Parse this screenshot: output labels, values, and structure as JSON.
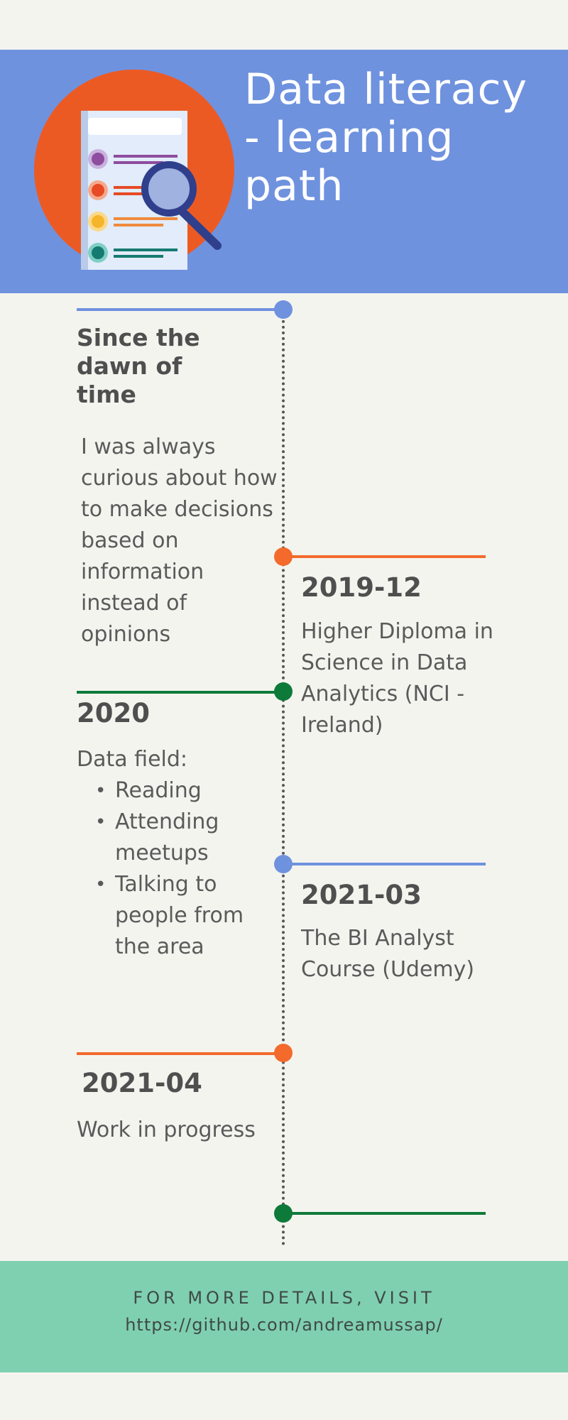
{
  "header": {
    "title": "Data literacy - learning path",
    "icon": "document-magnifier-icon",
    "colors": {
      "background": "#6f92de",
      "icon_circle": "#ec5a24"
    }
  },
  "timeline": [
    {
      "heading": "Since the dawn of time",
      "text": "I was always curious about how to make decisions based on information instead of opinions",
      "color": "#6f92de"
    },
    {
      "heading": "2019-12",
      "text": "Higher Diploma in Science in Data Analytics (NCI - Ireland)",
      "color": "#f36a2c"
    },
    {
      "heading": "2020",
      "intro": "Data field:",
      "bullets": [
        "Reading",
        "Attending meetups",
        "Talking to people from the area"
      ],
      "color": "#0e7a3a"
    },
    {
      "heading": "2021-03",
      "text": "The BI Analyst Course (Udemy)",
      "color": "#6f92de"
    },
    {
      "heading": "2021-04",
      "text": "Work in progress",
      "color": "#f36a2c"
    },
    {
      "color": "#0e7a3a"
    }
  ],
  "footer": {
    "visit_label": "FOR MORE DETAILS, VISIT",
    "link": "https://github.com/andreamussap/",
    "color": "#7fd0b0"
  }
}
